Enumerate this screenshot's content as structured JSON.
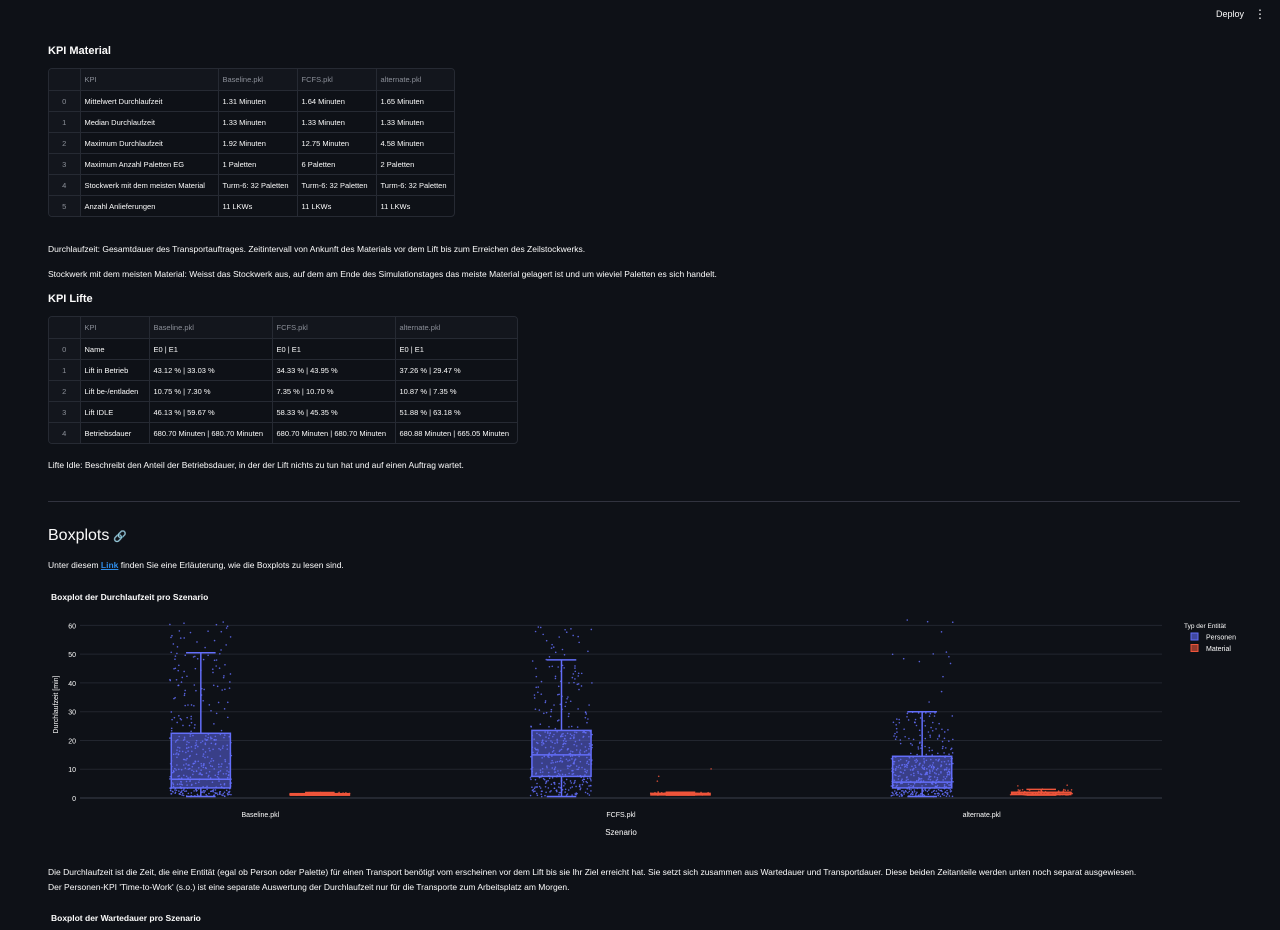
{
  "header": {
    "deploy_label": "Deploy",
    "menu_icon": "kebab-icon"
  },
  "kpi_material": {
    "title": "KPI Material",
    "columns": [
      "",
      "KPI",
      "Baseline.pkl",
      "FCFS.pkl",
      "alternate.pkl"
    ],
    "rows": [
      [
        "0",
        "Mittelwert Durchlaufzeit",
        "1.31 Minuten",
        "1.64 Minuten",
        "1.65 Minuten"
      ],
      [
        "1",
        "Median Durchlaufzeit",
        "1.33 Minuten",
        "1.33 Minuten",
        "1.33 Minuten"
      ],
      [
        "2",
        "Maximum Durchlaufzeit",
        "1.92 Minuten",
        "12.75 Minuten",
        "4.58 Minuten"
      ],
      [
        "3",
        "Maximum Anzahl Paletten EG",
        "1 Paletten",
        "6 Paletten",
        "2 Paletten"
      ],
      [
        "4",
        "Stockwerk mit dem meisten Material",
        "Turm-6: 32 Paletten",
        "Turm-6: 32 Paletten",
        "Turm-6: 32 Paletten"
      ],
      [
        "5",
        "Anzahl Anlieferungen",
        "11 LKWs",
        "11 LKWs",
        "11 LKWs"
      ]
    ],
    "note1": "Durchlaufzeit: Gesamtdauer des Transportauftrages. Zeitintervall von Ankunft des Materials vor dem Lift bis zum Erreichen des Zeilstockwerks.",
    "note2": "Stockwerk mit dem meisten Material: Weisst das Stockwerk aus, auf dem am Ende des Simulationstages das meiste Material gelagert ist und um wieviel Paletten es sich handelt."
  },
  "kpi_lifte": {
    "title": "KPI Lifte",
    "columns": [
      "",
      "KPI",
      "Baseline.pkl",
      "FCFS.pkl",
      "alternate.pkl"
    ],
    "rows": [
      [
        "0",
        "Name",
        "E0 | E1",
        "E0 | E1",
        "E0 | E1"
      ],
      [
        "1",
        "Lift in Betrieb",
        "43.12 % | 33.03 %",
        "34.33 % | 43.95 %",
        "37.26 % | 29.47 %"
      ],
      [
        "2",
        "Lift be-/entladen",
        "10.75 % | 7.30 %",
        "7.35 % | 10.70 %",
        "10.87 % | 7.35 %"
      ],
      [
        "3",
        "Lift IDLE",
        "46.13 % | 59.67 %",
        "58.33 % | 45.35 %",
        "51.88 % | 63.18 %"
      ],
      [
        "4",
        "Betriebsdauer",
        "680.70 Minuten | 680.70 Minuten",
        "680.70 Minuten | 680.70 Minuten",
        "680.88 Minuten | 665.05 Minuten"
      ]
    ],
    "note": "Lifte Idle: Beschreibt den Anteil der Betriebsdauer, in der der Lift nichts zu tun hat und auf einen Auftrag wartet."
  },
  "boxplots": {
    "title": "Boxplots",
    "link_icon": "link-icon",
    "intro_pre": "Unter diesem ",
    "intro_link": "Link",
    "intro_post": " finden Sie eine Erläuterung, wie die Boxplots zu lesen sind.",
    "desc1": "Die Durchlaufzeit ist die Zeit, die eine Entität (egal ob Person oder Palette) für einen Transport benötigt vom erscheinen vor dem Lift bis sie Ihr Ziel erreicht hat. Sie setzt sich zusammen aus Wartedauer und Transportdauer. Diese beiden Zeitanteile werden unten noch separat ausgewiesen.",
    "desc2": "Der Personen-KPI 'Time-to-Work' (s.o.) ist eine separate Auswertung der Durchlaufzeit nur für die Transporte zum Arbeitsplatz am Morgen.",
    "next_chart_title": "Boxplot der Wartedauer pro Szenario"
  },
  "chart_data": {
    "type": "box",
    "title": "Boxplot der Durchlaufzeit pro Szenario",
    "xlabel": "Szenario",
    "ylabel": "Durchlaufzeit [min]",
    "ylim": [
      0,
      65
    ],
    "yticks": [
      0,
      10,
      20,
      30,
      40,
      50,
      60
    ],
    "categories": [
      "Baseline.pkl",
      "FCFS.pkl",
      "alternate.pkl"
    ],
    "legend_title": "Typ der Entität",
    "legend_position": "top-right",
    "grid": true,
    "series": [
      {
        "name": "Personen",
        "color": "#636efa",
        "boxes": [
          {
            "min": 0.5,
            "q1": 3.5,
            "median": 6.5,
            "q3": 22.5,
            "max": 50.5,
            "outlier_max": 62
          },
          {
            "min": 0.5,
            "q1": 7.5,
            "median": 15,
            "q3": 23.5,
            "max": 48,
            "outlier_max": 60
          },
          {
            "min": 0.5,
            "q1": 3.5,
            "median": 5.5,
            "q3": 14.5,
            "max": 30,
            "outlier_max": 63
          }
        ]
      },
      {
        "name": "Material",
        "color": "#ef553b",
        "boxes": [
          {
            "min": 1.0,
            "q1": 1.2,
            "median": 1.33,
            "q3": 1.5,
            "max": 1.92,
            "outlier_max": 1.92
          },
          {
            "min": 1.0,
            "q1": 1.2,
            "median": 1.33,
            "q3": 1.6,
            "max": 2.0,
            "outlier_max": 12.75
          },
          {
            "min": 1.0,
            "q1": 1.2,
            "median": 1.33,
            "q3": 2.0,
            "max": 3.0,
            "outlier_max": 4.58
          }
        ]
      }
    ]
  }
}
